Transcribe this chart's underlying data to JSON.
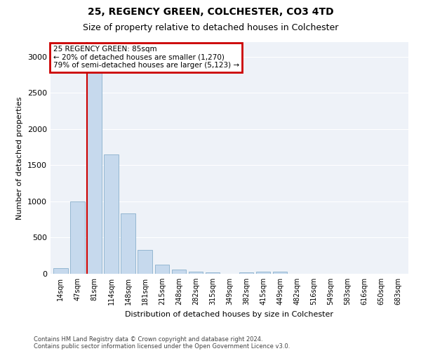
{
  "title1": "25, REGENCY GREEN, COLCHESTER, CO3 4TD",
  "title2": "Size of property relative to detached houses in Colchester",
  "xlabel": "Distribution of detached houses by size in Colchester",
  "ylabel": "Number of detached properties",
  "footnote1": "Contains HM Land Registry data © Crown copyright and database right 2024.",
  "footnote2": "Contains public sector information licensed under the Open Government Licence v3.0.",
  "annotation_line1": "25 REGENCY GREEN: 85sqm",
  "annotation_line2": "← 20% of detached houses are smaller (1,270)",
  "annotation_line3": "79% of semi-detached houses are larger (5,123) →",
  "bar_color": "#c6d9ed",
  "bar_edge_color": "#8ab0cc",
  "marker_color": "#cc0000",
  "annotation_box_color": "#cc0000",
  "background_color": "#eef2f8",
  "categories": [
    "14sqm",
    "47sqm",
    "81sqm",
    "114sqm",
    "148sqm",
    "181sqm",
    "215sqm",
    "248sqm",
    "282sqm",
    "315sqm",
    "349sqm",
    "382sqm",
    "415sqm",
    "449sqm",
    "482sqm",
    "516sqm",
    "549sqm",
    "583sqm",
    "616sqm",
    "650sqm",
    "683sqm"
  ],
  "values": [
    75,
    1000,
    2970,
    1650,
    830,
    330,
    130,
    60,
    30,
    20,
    0,
    20,
    30,
    30,
    0,
    0,
    0,
    0,
    0,
    0,
    0
  ],
  "marker_bar_index": 2,
  "ylim": [
    0,
    3200
  ],
  "yticks": [
    0,
    500,
    1000,
    1500,
    2000,
    2500,
    3000
  ]
}
